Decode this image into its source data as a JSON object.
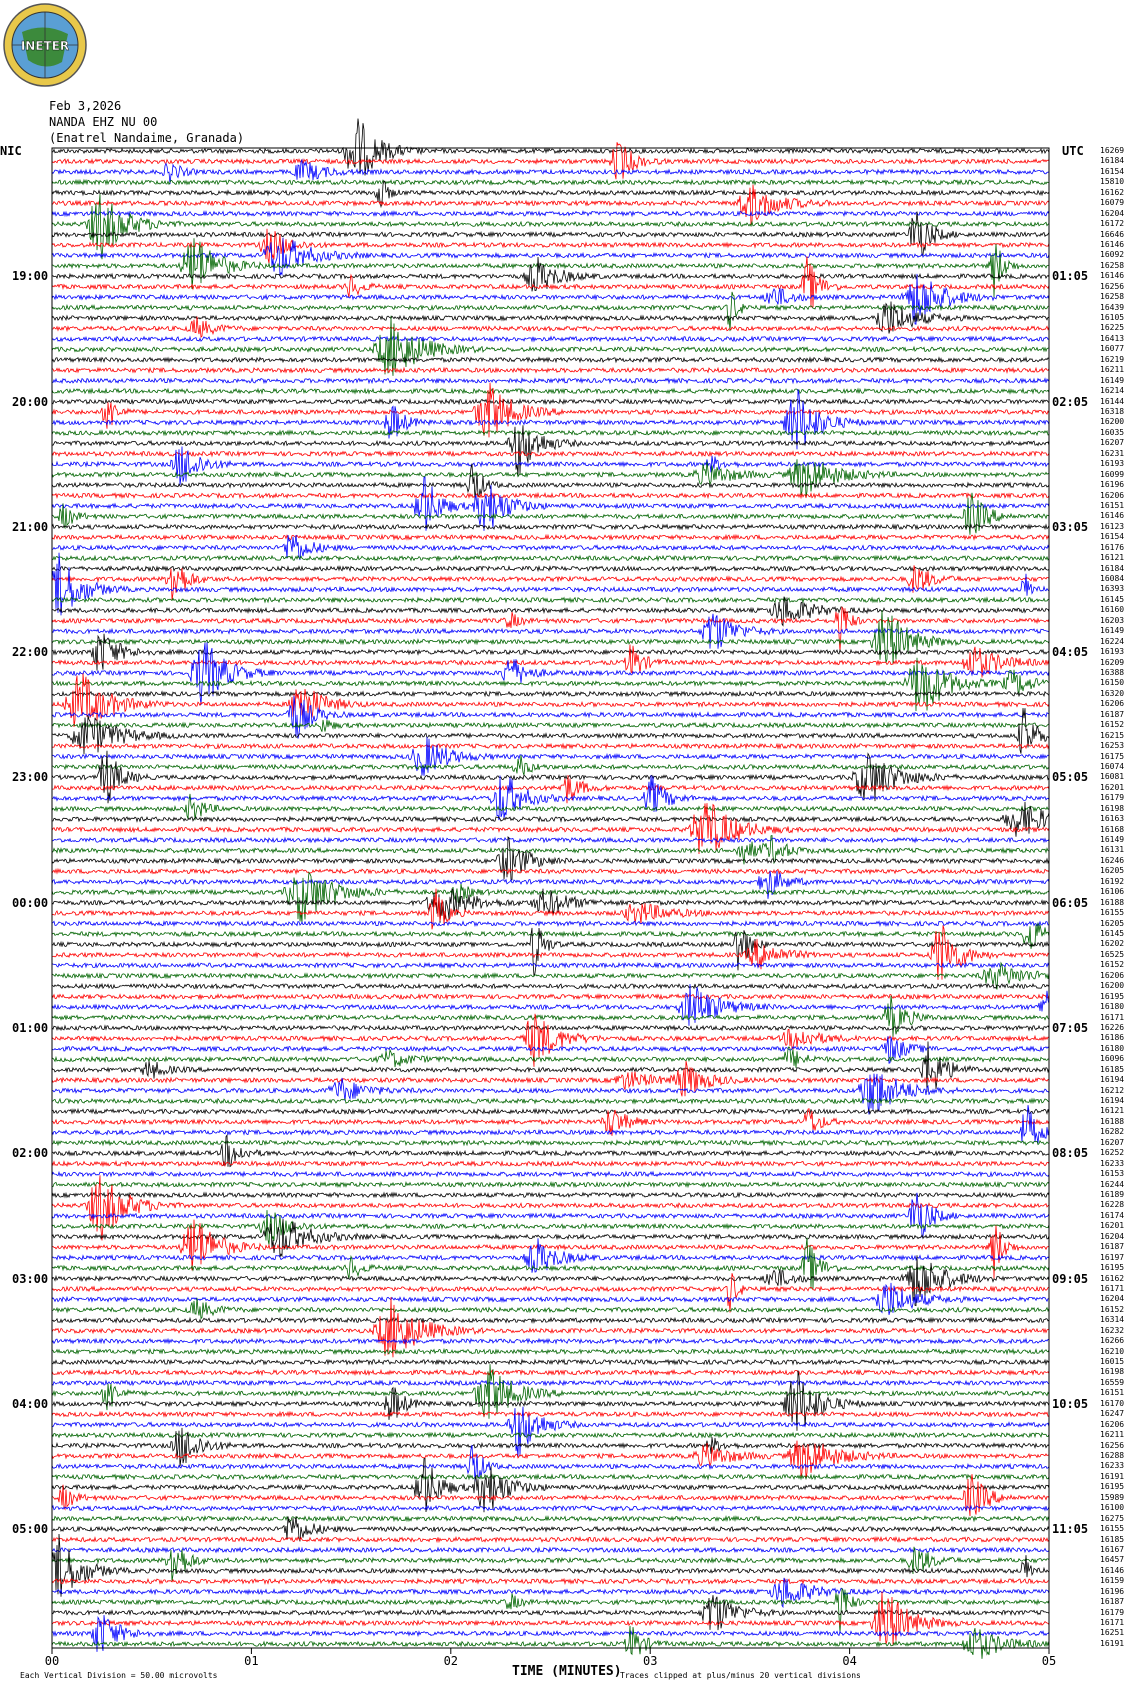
{
  "logo": {
    "text": "INETER"
  },
  "header": {
    "date": "Feb 3,2026",
    "station": "NANDA EHZ NU 00",
    "location": "(Enatrel Nandaime, Granada)"
  },
  "left_timezone": "NIC",
  "right_timezone": "UTC",
  "footer": {
    "scale_note": "Each Vertical Division =   50.00 microvolts",
    "xlabel": "TIME (MINUTES)",
    "clip_note": "Traces clipped at plus/minus 20 vertical divisions"
  },
  "chart_data": {
    "type": "helicorder",
    "xlabel": "TIME (MINUTES)",
    "x_ticks": [
      "00",
      "01",
      "02",
      "03",
      "04",
      "05"
    ],
    "xlim": [
      0,
      5
    ],
    "minutes_per_line": 5,
    "trace_colors": [
      "#000000",
      "#ff0000",
      "#0000ff",
      "#006400"
    ],
    "left_hour_labels": [
      "19:00",
      "20:00",
      "21:00",
      "22:00",
      "23:00",
      "00:00",
      "01:00",
      "02:00",
      "03:00",
      "04:00",
      "05:00"
    ],
    "right_hour_labels": [
      "01:05",
      "02:05",
      "03:05",
      "04:05",
      "05:05",
      "06:05",
      "07:05",
      "08:05",
      "09:05",
      "10:05",
      "11:05"
    ],
    "line_counts": [
      16269,
      16184,
      16154,
      15810,
      16162,
      16079,
      16204,
      16172,
      16646,
      16146,
      16092,
      16258,
      16146,
      16256,
      16258,
      16439,
      16105,
      16225,
      16413,
      16077,
      16219,
      16211,
      16149,
      16214,
      16144,
      16318,
      16200,
      16035,
      16207,
      16231,
      16193,
      16099,
      16196,
      16206,
      16151,
      16146,
      16123,
      16154,
      16176,
      16121,
      16184,
      16084,
      16393,
      16145,
      16160,
      16203,
      16149,
      16224,
      16193,
      16209,
      16388,
      16150,
      16320,
      16206,
      16187,
      16152,
      16215,
      16253,
      16175,
      16074,
      16081,
      16201,
      16179,
      16198,
      16163,
      16168,
      16149,
      16131,
      16246,
      16205,
      16192,
      16106,
      16188,
      16155,
      16205,
      16145,
      16202,
      16525,
      16152,
      16206,
      16200,
      16195,
      16180,
      16171,
      16226,
      16186,
      16180,
      16096,
      16185,
      16194,
      16212,
      16194,
      16121,
      16188,
      16282,
      16207,
      16252,
      16233,
      16153,
      16244,
      16189,
      16228,
      16174,
      16201,
      16204,
      16187,
      16197,
      16195,
      16162,
      16171,
      16204,
      16152,
      16314,
      16232,
      16266,
      16210,
      16015,
      16198,
      16559,
      16151,
      16170,
      16247,
      16206,
      16211,
      16256,
      16288,
      16233,
      16191,
      16195,
      15989,
      16100,
      16275,
      16155,
      16185,
      16167,
      16457,
      16146,
      16159,
      16196,
      16187,
      16179,
      16171,
      16251,
      16191
    ]
  }
}
